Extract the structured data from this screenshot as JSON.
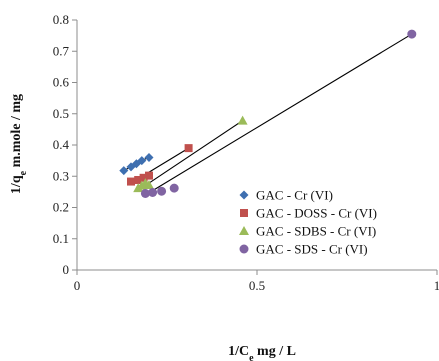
{
  "chart_data": {
    "type": "scatter",
    "xlabel": {
      "main": "1/C",
      "sub": "e",
      "rest": " mg / L"
    },
    "ylabel": {
      "main": "1/q",
      "sub": "e",
      "rest": " m.mole / mg"
    },
    "xlim": [
      0,
      1
    ],
    "ylim": [
      0,
      0.8
    ],
    "x_ticks": [
      "0",
      "0.5",
      "1"
    ],
    "y_ticks": [
      "0",
      "0.1",
      "0.2",
      "0.3",
      "0.4",
      "0.5",
      "0.6",
      "0.7",
      "0.8"
    ],
    "grid": false,
    "legend_position": "right",
    "series": [
      {
        "name": "GAC - Cr (VI)",
        "marker": "diamond",
        "color": "#3e6fb0",
        "points": [
          [
            0.13,
            0.318
          ],
          [
            0.15,
            0.33
          ],
          [
            0.165,
            0.34
          ],
          [
            0.18,
            0.35
          ],
          [
            0.2,
            0.36
          ]
        ],
        "trendline": [
          [
            0.13,
            0.318
          ],
          [
            0.2,
            0.362
          ]
        ]
      },
      {
        "name": "GAC - DOSS - Cr (VI)",
        "marker": "square",
        "color": "#c0504d",
        "points": [
          [
            0.15,
            0.283
          ],
          [
            0.17,
            0.288
          ],
          [
            0.185,
            0.295
          ],
          [
            0.2,
            0.302
          ],
          [
            0.31,
            0.39
          ]
        ],
        "trendline": [
          [
            0.15,
            0.278
          ],
          [
            0.31,
            0.39
          ]
        ]
      },
      {
        "name": "GAC - SDBS - Cr (VI)",
        "marker": "triangle",
        "color": "#9bbb59",
        "points": [
          [
            0.17,
            0.262
          ],
          [
            0.18,
            0.27
          ],
          [
            0.19,
            0.278
          ],
          [
            0.2,
            0.272
          ],
          [
            0.46,
            0.478
          ]
        ],
        "trendline": [
          [
            0.17,
            0.255
          ],
          [
            0.46,
            0.478
          ]
        ]
      },
      {
        "name": "GAC - SDS - Cr (VI)",
        "marker": "circle",
        "color": "#8064a2",
        "points": [
          [
            0.19,
            0.245
          ],
          [
            0.21,
            0.248
          ],
          [
            0.235,
            0.252
          ],
          [
            0.27,
            0.262
          ],
          [
            0.93,
            0.755
          ]
        ],
        "trendline": [
          [
            0.19,
            0.24
          ],
          [
            0.93,
            0.755
          ]
        ]
      }
    ]
  }
}
